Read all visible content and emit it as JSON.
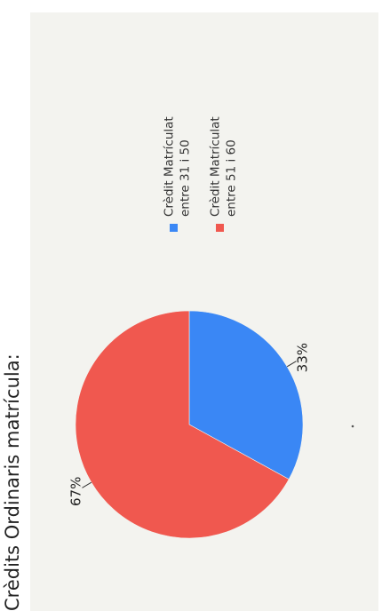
{
  "heading": "Crèdits Ordinaris matrícula:",
  "chart_data": {
    "type": "pie",
    "title": "",
    "slices": [
      {
        "label_lines": [
          "Crèdit Matrículat",
          "entre  31 i 50"
        ],
        "value": 33,
        "display": "33%",
        "color": "#3a87f5"
      },
      {
        "label_lines": [
          "Crèdit Matrículat",
          "entre  51 i 60"
        ],
        "value": 67,
        "display": "67%",
        "color": "#f0584f"
      }
    ],
    "legend_position": "top"
  }
}
